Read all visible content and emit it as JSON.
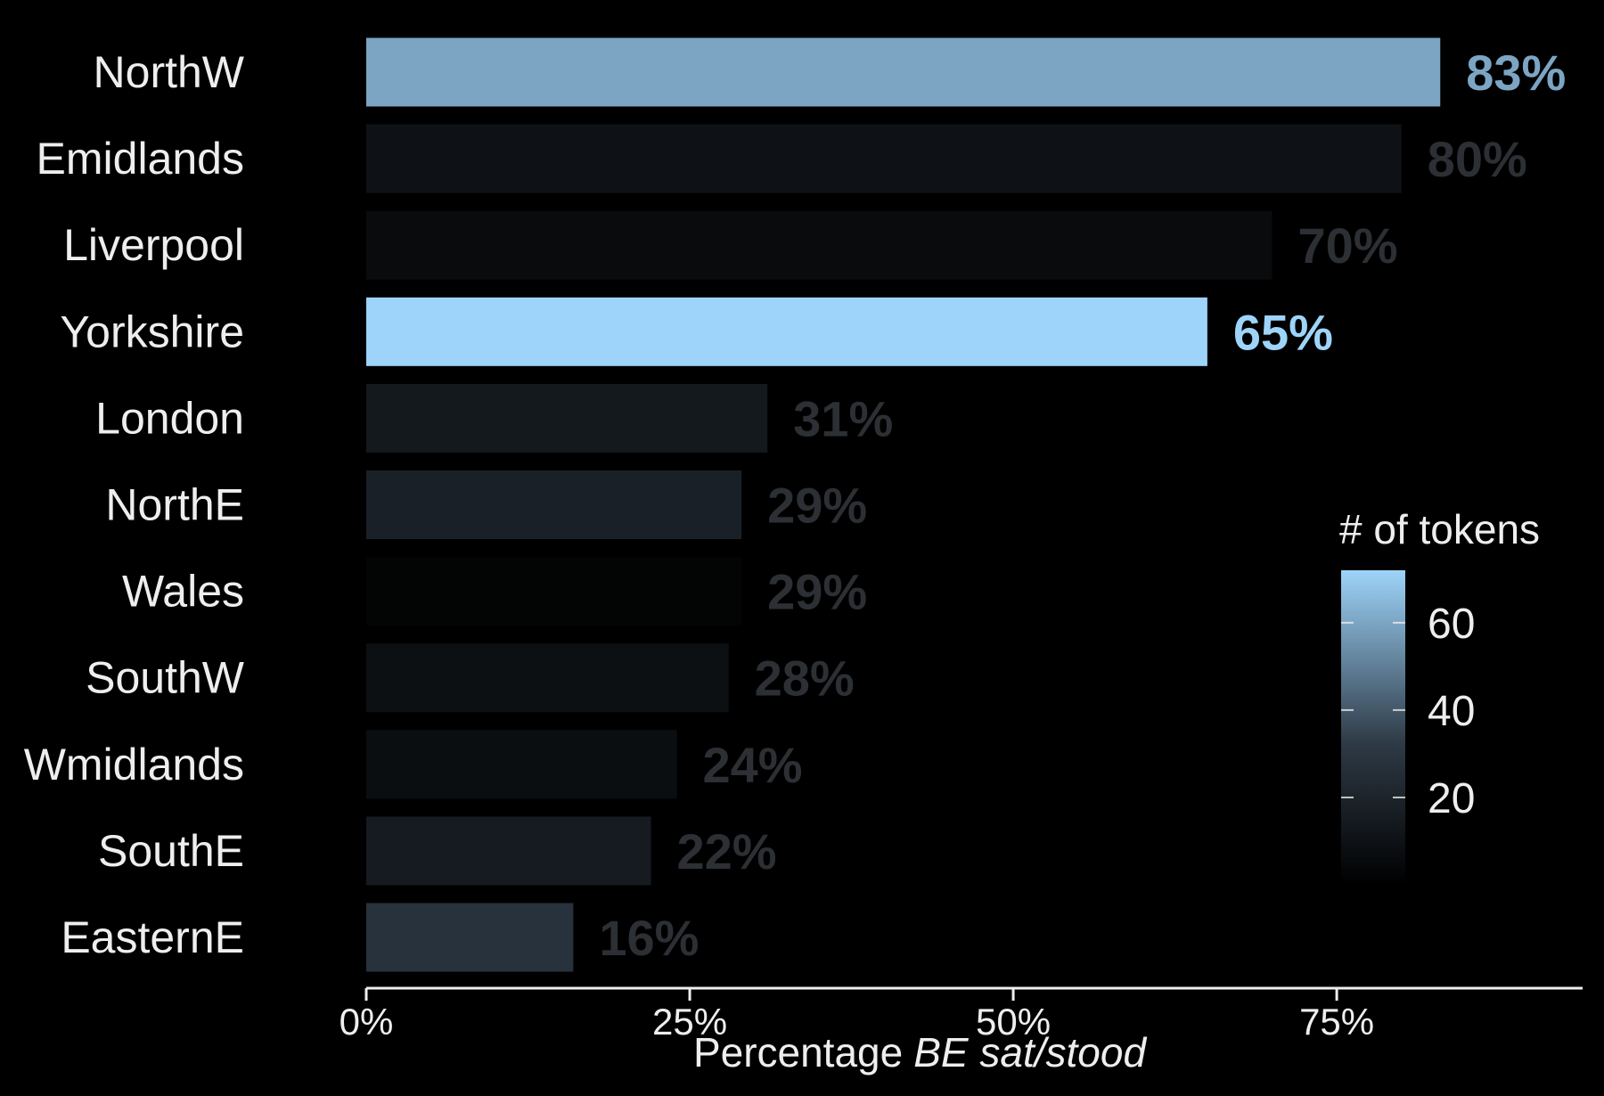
{
  "chart_data": {
    "type": "bar",
    "orientation": "horizontal",
    "categories": [
      "NorthW",
      "Emidlands",
      "Liverpool",
      "Yorkshire",
      "London",
      "NorthE",
      "Wales",
      "SouthW",
      "Wmidlands",
      "SouthE",
      "EasternE"
    ],
    "values": [
      83,
      80,
      70,
      65,
      31,
      29,
      29,
      28,
      24,
      22,
      16
    ],
    "value_labels": [
      "83%",
      "80%",
      "70%",
      "65%",
      "31%",
      "29%",
      "29%",
      "28%",
      "24%",
      "22%",
      "16%"
    ],
    "fill_variable": {
      "name": "# of tokens",
      "values": [
        60,
        10,
        6,
        72,
        14,
        18,
        2,
        9,
        8,
        15,
        28
      ]
    },
    "xlabel": "Percentage",
    "xlabel_italic": "BE sat/stood",
    "ylabel": "",
    "xlim": [
      0,
      94
    ],
    "x_ticks": [
      0,
      25,
      50,
      75
    ],
    "x_tick_labels": [
      "0%",
      "25%",
      "50%",
      "75%"
    ],
    "legend": {
      "title": "# of tokens",
      "ticks": [
        20,
        40,
        60
      ],
      "tick_labels": [
        "20",
        "40",
        "60"
      ],
      "range": [
        0,
        72
      ],
      "position": "right",
      "colors": {
        "low": "#000000",
        "mid": "#2e3a46",
        "high": "#9ed4fa"
      }
    },
    "grid": false
  },
  "colors": {
    "background": "#000000",
    "text": "#eeeeee",
    "axis": "#eeeeee"
  }
}
